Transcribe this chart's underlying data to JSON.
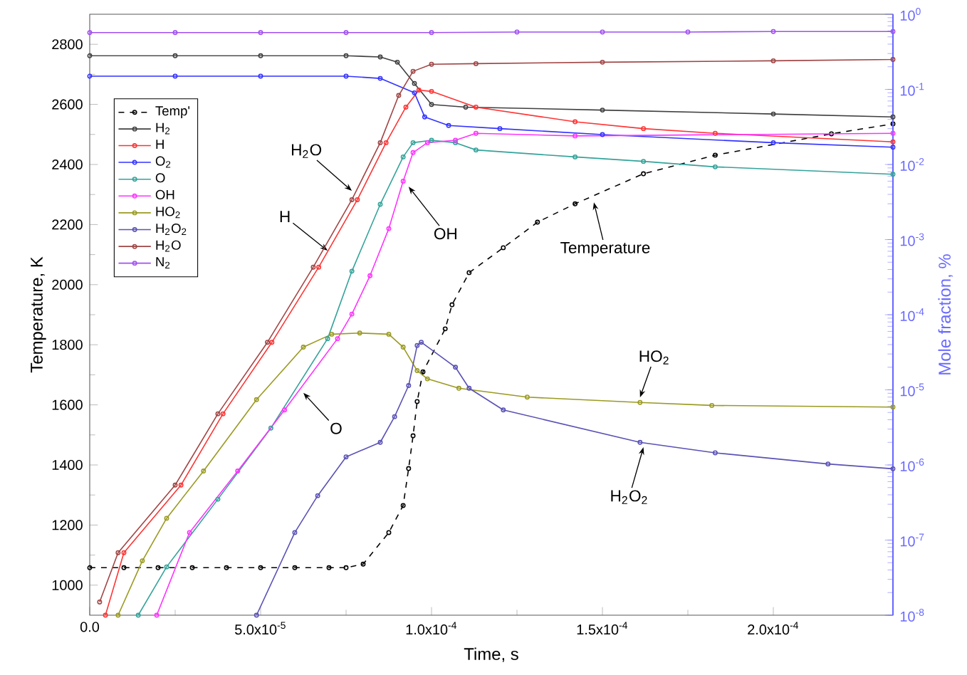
{
  "chart_data": {
    "type": "line",
    "xlabel": "Time, s",
    "ylabel": "Temperature, K",
    "y2label": "Mole fraction, %",
    "xlim": [
      0,
      0.000235
    ],
    "ylim": [
      900,
      2900
    ],
    "y2lim": [
      1e-08,
      1
    ],
    "log": "y2",
    "marker": "circle",
    "legend": "top left",
    "grid": false,
    "xticks": [
      {
        "value": 0,
        "label": "0.0"
      },
      {
        "value": 5e-05,
        "label": "5.0x10$^{-5}$"
      },
      {
        "value": 0.0001,
        "label": "1.0x10$^{-4}$"
      },
      {
        "value": 0.00015,
        "label": "1.5x10$^{-4}$"
      },
      {
        "value": 0.0002,
        "label": "2.0x10$^{-4}$"
      }
    ],
    "yticks": [
      1000,
      1200,
      1400,
      1600,
      1800,
      2000,
      2200,
      2400,
      2600,
      2800
    ],
    "y2ticks": [
      {
        "value": 1e-08,
        "label": "10$^{-8}$"
      },
      {
        "value": 1e-07,
        "label": "10$^{-7}$"
      },
      {
        "value": 1e-06,
        "label": "10$^{-6}$"
      },
      {
        "value": 1e-05,
        "label": "10$^{-5}$"
      },
      {
        "value": 0.0001,
        "label": "10$^{-4}$"
      },
      {
        "value": 0.001,
        "label": "10$^{-3}$"
      },
      {
        "value": 0.01,
        "label": "10$^{-2}$"
      },
      {
        "value": 0.1,
        "label": "10$^{-1}$"
      },
      {
        "value": 1,
        "label": "10$^{0}$"
      }
    ],
    "series": [
      {
        "name": "Temp'",
        "color": "#000000",
        "line_style": "dashed",
        "x": [
          0,
          1e-05,
          2e-05,
          3e-05,
          4e-05,
          5e-05,
          6e-05,
          7e-05,
          7.5e-05,
          8e-05,
          8.75e-05,
          9.17e-05,
          9.33e-05,
          9.46e-05,
          9.58e-05,
          9.75e-05,
          0.000104,
          0.000106,
          0.000111,
          0.000121,
          0.000131,
          0.000142,
          0.000162,
          0.000183,
          0.000217,
          0.000235
        ],
        "values": [
          1058,
          1058,
          1058,
          1058,
          1058,
          1058,
          1058,
          1058,
          1058,
          1070,
          1175,
          1265,
          1388,
          1497,
          1611,
          1710,
          1853,
          1933,
          2040,
          2123,
          2208,
          2269,
          2369,
          2431,
          2502,
          2535
        ]
      },
      {
        "name": "H$_{2}$",
        "color": "#404040",
        "axis": "y2",
        "x": [
          0,
          2.5e-05,
          5e-05,
          7.5e-05,
          8.5e-05,
          9e-05,
          9.5e-05,
          0.0001,
          0.00011,
          0.00015,
          0.0002,
          0.000235
        ],
        "values": [
          0.28,
          0.28,
          0.28,
          0.28,
          0.27,
          0.23,
          0.12,
          0.063,
          0.058,
          0.053,
          0.047,
          0.043
        ]
      },
      {
        "name": "H",
        "color": "#ff3333",
        "axis": "y2",
        "x": [
          4.6e-06,
          1e-05,
          2.67e-05,
          3.9e-05,
          5.33e-05,
          6.7e-05,
          7.83e-05,
          8.67e-05,
          9.25e-05,
          9.63e-05,
          0.0001,
          0.000113,
          0.000142,
          0.000162,
          0.000183,
          0.000235
        ],
        "values": [
          1e-08,
          6.8e-08,
          5.4e-07,
          4.8e-06,
          4.3e-05,
          0.00043,
          0.0034,
          0.0195,
          0.058,
          0.098,
          0.094,
          0.058,
          0.037,
          0.03,
          0.026,
          0.02
        ]
      },
      {
        "name": "O$_{2}$",
        "color": "#3333ff",
        "axis": "y2",
        "x": [
          0,
          2.5e-05,
          5e-05,
          7.5e-05,
          8.5e-05,
          9.5e-05,
          9.8e-05,
          0.000105,
          0.00012,
          0.00015,
          0.0002,
          0.000235
        ],
        "values": [
          0.15,
          0.15,
          0.15,
          0.15,
          0.14,
          0.09,
          0.043,
          0.033,
          0.03,
          0.025,
          0.0195,
          0.017
        ]
      },
      {
        "name": "O",
        "color": "#33a39a",
        "axis": "y2",
        "x": [
          1.42e-05,
          2.25e-05,
          3.75e-05,
          5.3e-05,
          6.96e-05,
          7.67e-05,
          8.5e-05,
          9.17e-05,
          9.46e-05,
          0.0001,
          0.000107,
          0.000113,
          0.000142,
          0.000162,
          0.000183,
          0.000235
        ],
        "values": [
          1e-08,
          4.4e-08,
          3.5e-07,
          3.1e-06,
          4.8e-05,
          0.00038,
          0.00295,
          0.0126,
          0.0195,
          0.021,
          0.0195,
          0.0156,
          0.0126,
          0.011,
          0.0093,
          0.0074
        ]
      },
      {
        "name": "OH",
        "color": "#ff33ff",
        "axis": "y2",
        "x": [
          1.96e-05,
          2.92e-05,
          4.33e-05,
          5.7e-05,
          7.25e-05,
          7.67e-05,
          8.2e-05,
          8.75e-05,
          9.17e-05,
          9.46e-05,
          9.88e-05,
          0.000107,
          0.000113,
          0.000142,
          0.000235
        ],
        "values": [
          1e-08,
          1.26e-07,
          8.3e-07,
          5.4e-06,
          4.8e-05,
          0.000102,
          0.00033,
          0.0014,
          0.006,
          0.0144,
          0.0195,
          0.021,
          0.026,
          0.024,
          0.026
        ]
      },
      {
        "name": "HO$_{2}$",
        "color": "#9a9a22",
        "axis": "y2",
        "x": [
          8.3e-06,
          1.54e-05,
          2.25e-05,
          3.33e-05,
          4.88e-05,
          6.25e-05,
          7.08e-05,
          7.9e-05,
          8.75e-05,
          9.17e-05,
          9.58e-05,
          9.88e-05,
          0.000108,
          0.000128,
          0.000161,
          0.000182,
          0.000235
        ],
        "values": [
          1e-08,
          5.3e-08,
          1.95e-07,
          8.3e-07,
          7.4e-06,
          3.7e-05,
          5.5e-05,
          5.7e-05,
          5.5e-05,
          3.7e-05,
          1.8e-05,
          1.4e-05,
          1.05e-05,
          8e-06,
          6.8e-06,
          6.2e-06,
          5.9e-06
        ]
      },
      {
        "name": "H$_{2}$O$_{2}$",
        "color": "#5a52b5",
        "axis": "y2",
        "x": [
          4.88e-05,
          6e-05,
          6.67e-05,
          7.5e-05,
          8.5e-05,
          8.92e-05,
          9.33e-05,
          9.58e-05,
          9.7e-05,
          0.000107,
          0.000111,
          0.000121,
          0.000161,
          0.000183,
          0.000216,
          0.000235
        ],
        "values": [
          1e-08,
          1.26e-07,
          3.9e-07,
          1.28e-06,
          2e-06,
          4.4e-06,
          1.14e-05,
          3.9e-05,
          4.3e-05,
          2e-05,
          1.05e-05,
          5.4e-06,
          2e-06,
          1.45e-06,
          1.03e-06,
          8.9e-07
        ]
      },
      {
        "name": "H$_{2}$O",
        "color": "#a04545",
        "axis": "y2",
        "x": [
          2.9e-06,
          8.3e-06,
          2.5e-05,
          3.75e-05,
          5.2e-05,
          6.54e-05,
          7.67e-05,
          8.5e-05,
          9.04e-05,
          9.46e-05,
          0.0001,
          0.000113,
          0.00015,
          0.0002,
          0.000235
        ],
        "values": [
          1.5e-08,
          6.8e-08,
          5.4e-07,
          4.8e-06,
          4.3e-05,
          0.00043,
          0.0034,
          0.0195,
          0.083,
          0.174,
          0.216,
          0.22,
          0.23,
          0.24,
          0.25
        ]
      },
      {
        "name": "N$_{2}$",
        "color": "#a050f0",
        "axis": "y2",
        "x": [
          0,
          2.5e-05,
          5e-05,
          7.5e-05,
          0.0001,
          0.000125,
          0.00015,
          0.000175,
          0.0002,
          0.000235
        ],
        "values": [
          0.57,
          0.57,
          0.57,
          0.57,
          0.57,
          0.58,
          0.58,
          0.58,
          0.59,
          0.59
        ]
      }
    ],
    "annotations": [
      {
        "text": "H$_{2}$O",
        "x": 7.67e-05,
        "y": 2312
      },
      {
        "text": "H",
        "x": 6.96e-05,
        "y": 2113
      },
      {
        "text": "OH",
        "x": 9.33e-05,
        "y": 2326
      },
      {
        "text": "Temperature",
        "x": 0.0001475,
        "y": 2274
      },
      {
        "text": "O",
        "x": 6.25e-05,
        "y": 1640
      },
      {
        "text": "HO$_{2}$",
        "x": 0.000161,
        "y": 1625
      },
      {
        "text": "H$_{2}$O$_{2}$",
        "x": 0.000162,
        "y": 1459
      }
    ]
  }
}
